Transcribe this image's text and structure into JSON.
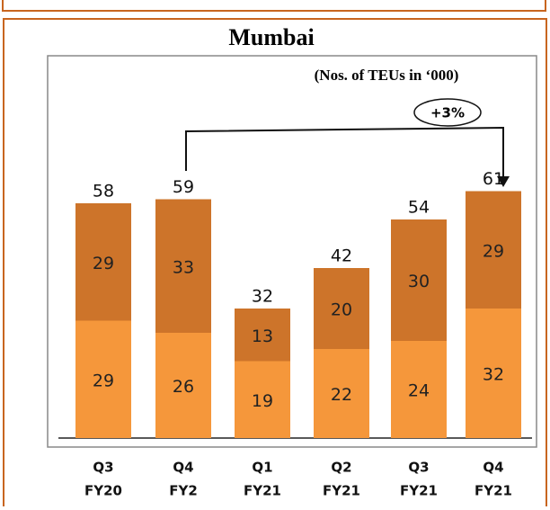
{
  "chart_data": {
    "type": "stacked_bar",
    "title": "Mumbai",
    "annotations": [
      "(Nos. of TEUs in ‘000)",
      "+3%"
    ],
    "categories": [
      [
        "Q3",
        "FY20"
      ],
      [
        "Q4",
        "FY2"
      ],
      [
        "Q1",
        "FY21"
      ],
      [
        "Q2",
        "FY21"
      ],
      [
        "Q3",
        "FY21"
      ],
      [
        "Q4",
        "FY21"
      ]
    ],
    "series": [
      {
        "color": "#f5973b",
        "values": [
          29,
          26,
          19,
          22,
          24,
          32
        ]
      },
      {
        "color": "#cd742a",
        "values": [
          29,
          33,
          13,
          20,
          30,
          29
        ]
      }
    ],
    "totals": [
      58,
      59,
      32,
      42,
      54,
      61
    ],
    "ylim": [
      0,
      70
    ]
  }
}
